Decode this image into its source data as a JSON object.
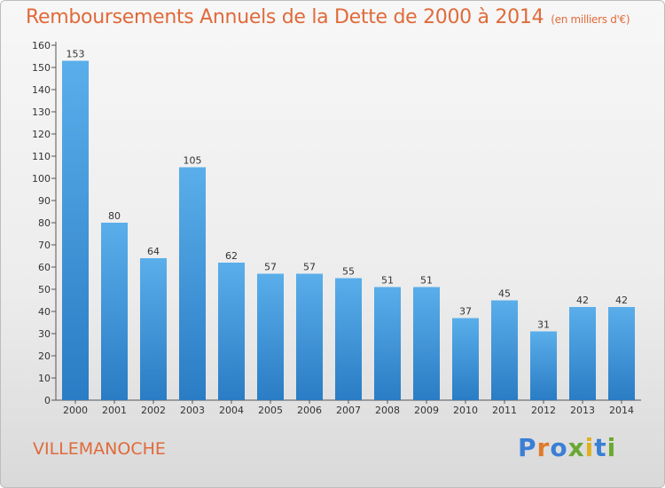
{
  "chart_data": {
    "type": "bar",
    "title": "Remboursements Annuels de la Dette de 2000 à 2014",
    "subtitle": "(en milliers d'€)",
    "xlabel": "",
    "ylabel": "",
    "categories": [
      "2000",
      "2001",
      "2002",
      "2003",
      "2004",
      "2005",
      "2006",
      "2007",
      "2008",
      "2009",
      "2010",
      "2011",
      "2012",
      "2013",
      "2014"
    ],
    "values": [
      153,
      80,
      64,
      105,
      62,
      57,
      57,
      55,
      51,
      51,
      37,
      45,
      31,
      42,
      42
    ],
    "ylim": [
      0,
      160
    ],
    "yticks": [
      0,
      10,
      20,
      30,
      40,
      50,
      60,
      70,
      80,
      90,
      100,
      110,
      120,
      130,
      140,
      150,
      160
    ],
    "grid": false,
    "bar_color": "#4a9ee0"
  },
  "footer": {
    "place": "VILLEMANOCHE",
    "logo": "Proxiti",
    "logo_colors": [
      "#3a7fd5",
      "#e07a2a",
      "#3a7fd5",
      "#6aa833",
      "#e0b020",
      "#3a7fd5",
      "#6aa833"
    ]
  },
  "colors": {
    "title": "#e06a3a",
    "frame_border": "#bdbdbd"
  }
}
